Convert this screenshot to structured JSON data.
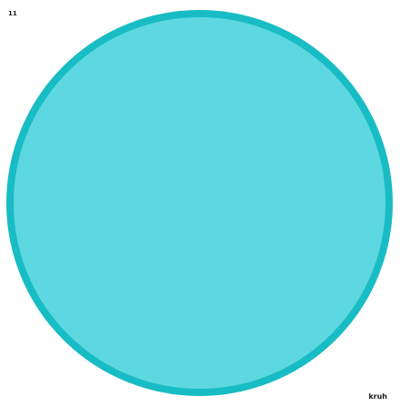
{
  "card": {
    "number": "11",
    "caption": "kruh"
  },
  "shape": {
    "icon": "circle-icon",
    "fill_color": "#5ED8E0",
    "stroke_color": "#18BCC4"
  }
}
